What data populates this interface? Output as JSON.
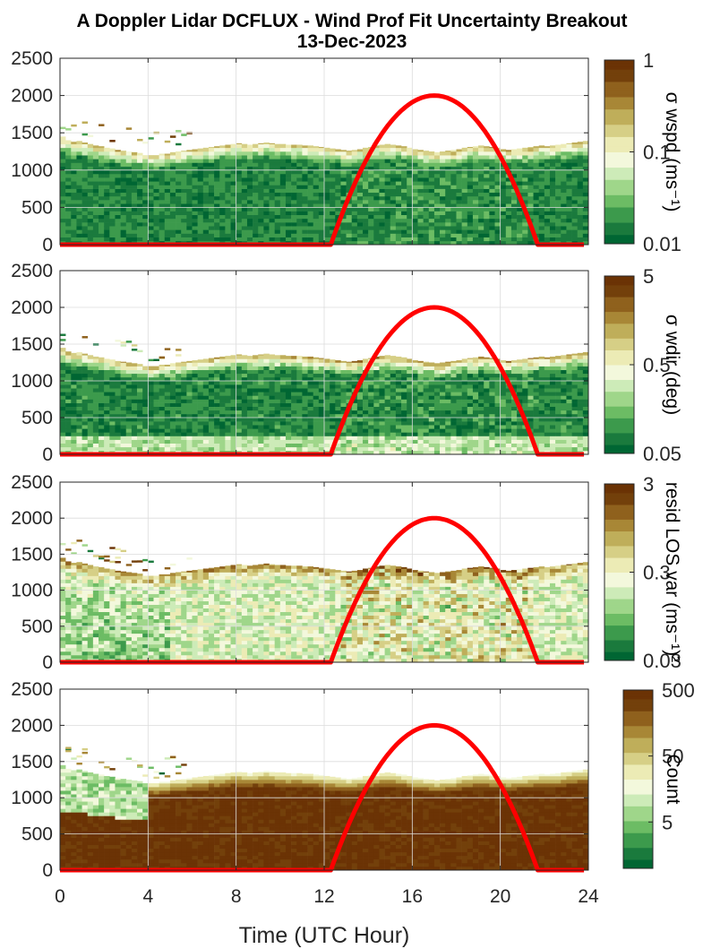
{
  "figure": {
    "title_line1": "A Doppler Lidar DCFLUX - Wind Prof Fit Uncertainty Breakout",
    "title_line2": "13-Dec-2023",
    "xlabel": "Time (UTC Hour)"
  },
  "colormap": [
    "#006633",
    "#1a7a3d",
    "#3c9a4c",
    "#6cbc64",
    "#9fd68a",
    "#cdebb8",
    "#f3f8dc",
    "#ecebb5",
    "#d6cf86",
    "#bfae5a",
    "#a88736",
    "#8f611d",
    "#73400b",
    "#6b3305"
  ],
  "sun_color": "#ff0000",
  "chart_data": [
    {
      "type": "heatmap",
      "name": "sigma_wspd",
      "colorbar_label": "σ wspd (ms⁻¹)",
      "colorbar_scale": "log",
      "colorbar_range": [
        0.01,
        1
      ],
      "colorbar_ticks": [
        "0.01",
        "0.1",
        "1"
      ],
      "xlim": [
        0,
        24
      ],
      "ylim": [
        0,
        2500
      ],
      "xticks": [
        0,
        4,
        8,
        12,
        16,
        20,
        24
      ],
      "yticks": [
        0,
        500,
        1000,
        1500,
        2000,
        2500
      ],
      "grid": true,
      "x_step_hours": 0.25,
      "cloud_top_m": [
        1450,
        1400,
        1380,
        1390,
        1370,
        1350,
        1330,
        1320,
        1300,
        1290,
        1270,
        1260,
        1250,
        1240,
        1230,
        1200,
        1200,
        1200,
        1220,
        1220,
        1240,
        1250,
        1260,
        1270,
        1280,
        1290,
        1300,
        1310,
        1320,
        1330,
        1340,
        1350,
        1360,
        1350,
        1340,
        1350,
        1360,
        1370,
        1360,
        1350,
        1350,
        1340,
        1340,
        1340,
        1330,
        1330,
        1320,
        1310,
        1300,
        1290,
        1280,
        1270,
        1260,
        1270,
        1280,
        1300,
        1310,
        1330,
        1340,
        1350,
        1340,
        1330,
        1320,
        1300,
        1280,
        1270,
        1260,
        1250,
        1240,
        1250,
        1260,
        1270,
        1280,
        1300,
        1310,
        1320,
        1330,
        1320,
        1310,
        1300,
        1280,
        1270,
        1280,
        1290,
        1300,
        1310,
        1320,
        1330,
        1320,
        1330,
        1340,
        1350,
        1360,
        1370,
        1380,
        1390
      ],
      "profile": {
        "base": 0.1,
        "top_boost": 0.6,
        "rand": 0.18,
        "day_rand": 0.1,
        "floor_boost": 0.0
      }
    },
    {
      "type": "heatmap",
      "name": "sigma_wdir",
      "colorbar_label": "σ wdir (deg)",
      "colorbar_scale": "log",
      "colorbar_range": [
        0.05,
        5
      ],
      "colorbar_ticks": [
        "0.05",
        "0.5",
        "5"
      ],
      "xlim": [
        0,
        24
      ],
      "ylim": [
        0,
        2500
      ],
      "xticks": [
        0,
        4,
        8,
        12,
        16,
        20,
        24
      ],
      "yticks": [
        0,
        500,
        1000,
        1500,
        2000,
        2500
      ],
      "grid": true,
      "x_step_hours": 0.25,
      "cloud_top_m": [
        1450,
        1400,
        1380,
        1390,
        1370,
        1350,
        1330,
        1320,
        1300,
        1290,
        1270,
        1260,
        1250,
        1240,
        1230,
        1200,
        1200,
        1200,
        1220,
        1220,
        1240,
        1250,
        1260,
        1270,
        1280,
        1290,
        1300,
        1310,
        1320,
        1330,
        1340,
        1350,
        1360,
        1350,
        1340,
        1350,
        1360,
        1370,
        1360,
        1350,
        1350,
        1340,
        1340,
        1340,
        1330,
        1330,
        1320,
        1310,
        1300,
        1290,
        1280,
        1270,
        1260,
        1270,
        1280,
        1300,
        1310,
        1330,
        1340,
        1350,
        1340,
        1330,
        1320,
        1300,
        1280,
        1270,
        1260,
        1250,
        1240,
        1250,
        1260,
        1270,
        1280,
        1300,
        1310,
        1320,
        1330,
        1320,
        1310,
        1300,
        1280,
        1270,
        1280,
        1290,
        1300,
        1310,
        1320,
        1330,
        1320,
        1330,
        1340,
        1350,
        1360,
        1370,
        1380,
        1390
      ],
      "profile": {
        "base": 0.1,
        "top_boost": 0.65,
        "rand": 0.2,
        "day_rand": 0.12,
        "floor_boost": 0.25
      }
    },
    {
      "type": "heatmap",
      "name": "resid_los_var",
      "colorbar_label": "resid LOS var (ms⁻¹)²",
      "colorbar_scale": "log",
      "colorbar_range": [
        0.03,
        3
      ],
      "colorbar_ticks": [
        "0.03",
        "0.3",
        "3"
      ],
      "xlim": [
        0,
        24
      ],
      "ylim": [
        0,
        2500
      ],
      "xticks": [
        0,
        4,
        8,
        12,
        16,
        20,
        24
      ],
      "yticks": [
        0,
        500,
        1000,
        1500,
        2000,
        2500
      ],
      "grid": true,
      "x_step_hours": 0.25,
      "cloud_top_m": [
        1450,
        1400,
        1380,
        1390,
        1370,
        1350,
        1330,
        1320,
        1300,
        1290,
        1270,
        1260,
        1250,
        1240,
        1230,
        1200,
        1200,
        1200,
        1220,
        1220,
        1240,
        1250,
        1260,
        1270,
        1280,
        1290,
        1300,
        1310,
        1320,
        1330,
        1340,
        1350,
        1360,
        1350,
        1340,
        1350,
        1360,
        1370,
        1360,
        1350,
        1350,
        1340,
        1340,
        1340,
        1330,
        1330,
        1320,
        1310,
        1300,
        1290,
        1280,
        1270,
        1260,
        1270,
        1280,
        1300,
        1310,
        1330,
        1340,
        1350,
        1340,
        1330,
        1320,
        1300,
        1280,
        1270,
        1260,
        1250,
        1240,
        1250,
        1260,
        1270,
        1280,
        1300,
        1310,
        1320,
        1330,
        1320,
        1310,
        1300,
        1280,
        1270,
        1280,
        1290,
        1300,
        1310,
        1320,
        1330,
        1320,
        1330,
        1340,
        1350,
        1360,
        1370,
        1380,
        1390
      ],
      "profile": {
        "base": 0.42,
        "top_boost": 0.35,
        "rand": 0.3,
        "day_rand": 0.35,
        "floor_boost": 0.0
      }
    },
    {
      "type": "heatmap",
      "name": "count",
      "colorbar_label": "Count",
      "colorbar_scale": "log",
      "colorbar_range": [
        1,
        500
      ],
      "colorbar_ticks": [
        "5",
        "50",
        "500"
      ],
      "xlim": [
        0,
        24
      ],
      "ylim": [
        0,
        2500
      ],
      "xticks": [
        0,
        4,
        8,
        12,
        16,
        20,
        24
      ],
      "xticklabels": [
        "0",
        "4",
        "8",
        "12",
        "16",
        "20",
        "24"
      ],
      "yticks": [
        0,
        500,
        1000,
        1500,
        2000,
        2500
      ],
      "grid": true,
      "x_step_hours": 0.25,
      "cloud_top_m": [
        1450,
        1400,
        1380,
        1390,
        1370,
        1350,
        1330,
        1320,
        1300,
        1290,
        1270,
        1260,
        1250,
        1240,
        1230,
        1200,
        1200,
        1200,
        1220,
        1220,
        1240,
        1250,
        1260,
        1270,
        1280,
        1290,
        1300,
        1310,
        1320,
        1330,
        1340,
        1350,
        1360,
        1350,
        1340,
        1350,
        1360,
        1370,
        1360,
        1350,
        1350,
        1340,
        1340,
        1340,
        1330,
        1330,
        1320,
        1310,
        1300,
        1290,
        1280,
        1270,
        1260,
        1270,
        1280,
        1300,
        1310,
        1330,
        1340,
        1350,
        1340,
        1330,
        1320,
        1300,
        1280,
        1270,
        1260,
        1250,
        1240,
        1250,
        1260,
        1270,
        1280,
        1300,
        1310,
        1320,
        1330,
        1320,
        1310,
        1300,
        1280,
        1270,
        1280,
        1290,
        1300,
        1310,
        1320,
        1330,
        1320,
        1330,
        1340,
        1350,
        1360,
        1370,
        1380,
        1390
      ],
      "profile": {
        "base": 0.97,
        "top_boost": -0.55,
        "rand": 0.04,
        "day_rand": 0.0,
        "floor_boost": 0.0
      }
    }
  ],
  "sun_curve": {
    "series_type": "line",
    "sunrise_hour": 12.3,
    "sunset_hour": 21.7,
    "peak_hour": 17.0,
    "peak_value_m": 2000,
    "night_value_m": 0
  }
}
